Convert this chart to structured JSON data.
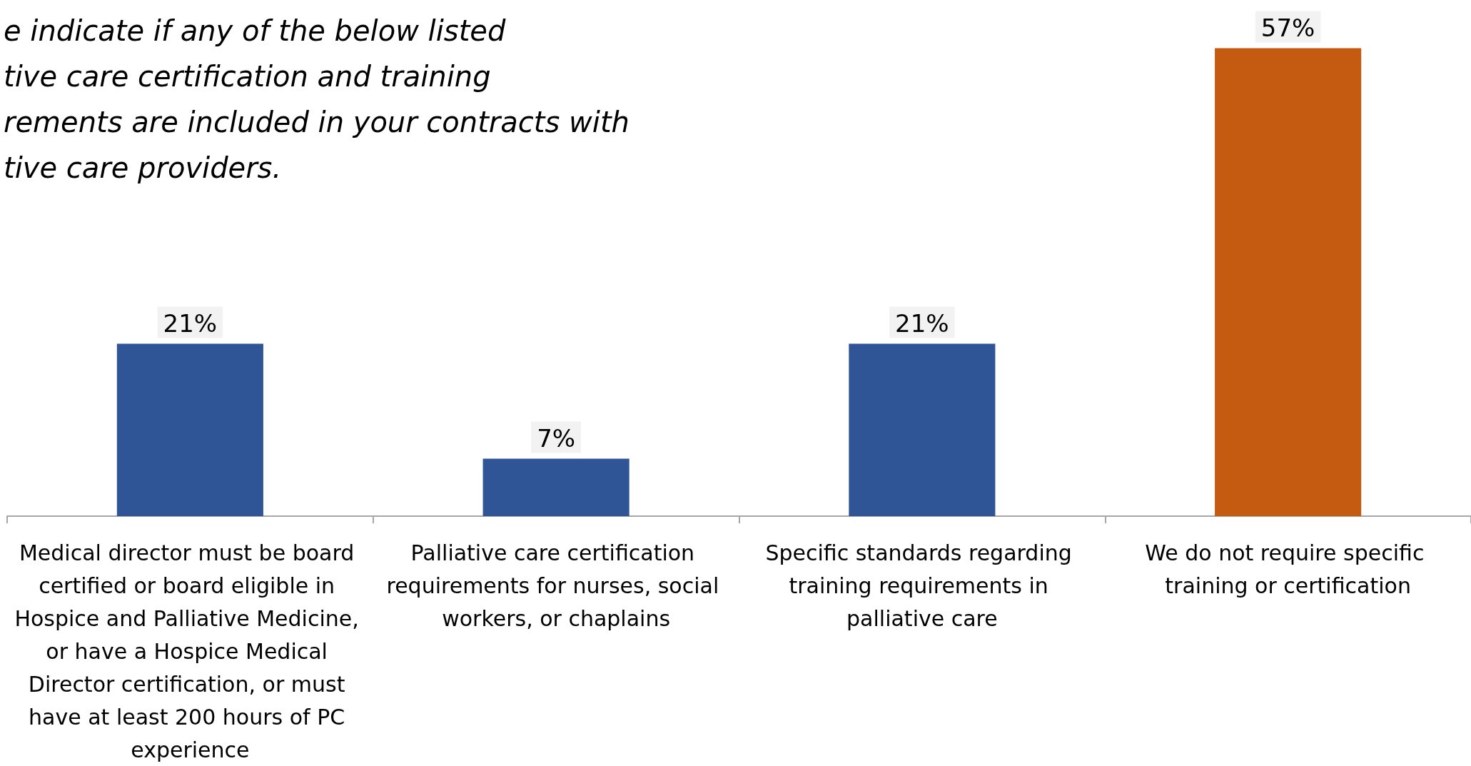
{
  "chart_data": {
    "type": "bar",
    "title": "e indicate if any of the below listed\ntive care certification and training\nrements are included in your contracts with\ntive care providers.",
    "categories": [
      "Medical director must be board certified or board eligible in Hospice and Palliative Medicine, or have a Hospice Medical Director certification, or must have at least 200 hours of PC experience",
      "Palliative care certification requirements for nurses, social workers, or chaplains",
      "Specific standards regarding training requirements in palliative care",
      "We do not require specific training or certification"
    ],
    "values": [
      21,
      7,
      21,
      57
    ],
    "colors": [
      "#2f5597",
      "#2f5597",
      "#2f5597",
      "#c55a11"
    ],
    "value_labels": [
      "21%",
      "7%",
      "21%",
      "57%"
    ]
  }
}
